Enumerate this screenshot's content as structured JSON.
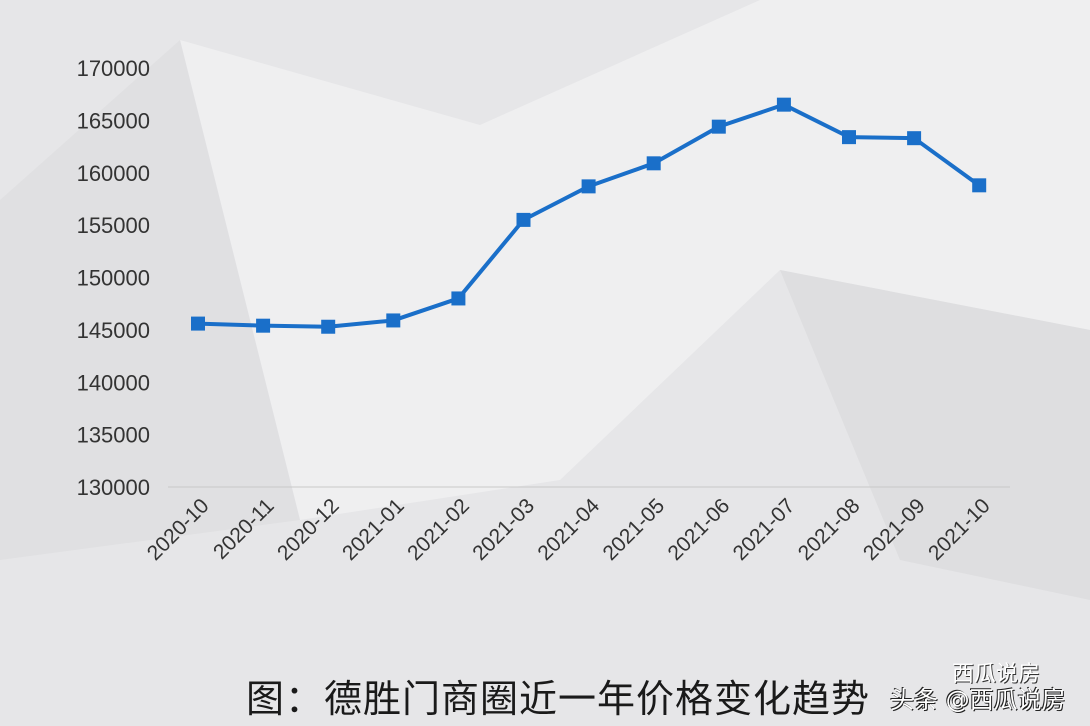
{
  "chart_data": {
    "type": "line",
    "title": "",
    "xlabel": "",
    "ylabel": "",
    "categories": [
      "2020-10",
      "2020-11",
      "2020-12",
      "2021-01",
      "2021-02",
      "2021-03",
      "2021-04",
      "2021-05",
      "2021-06",
      "2021-07",
      "2021-08",
      "2021-09",
      "2021-10"
    ],
    "series": [
      {
        "values": [
          145600,
          145400,
          145300,
          145900,
          148000,
          155500,
          158700,
          160900,
          164400,
          166500,
          163400,
          163300,
          158800
        ],
        "color": "#1a6fc9",
        "marker": "square"
      }
    ],
    "ylim": [
      130000,
      170000
    ],
    "yticks": [
      "130000",
      "135000",
      "140000",
      "145000",
      "150000",
      "155000",
      "160000",
      "165000",
      "170000"
    ],
    "grid": false,
    "legend": "none"
  },
  "caption": "图：德胜门商圈近一年价格变化趋势",
  "watermark": {
    "line1": "西瓜说房",
    "line2": "头条 @西瓜说房"
  }
}
